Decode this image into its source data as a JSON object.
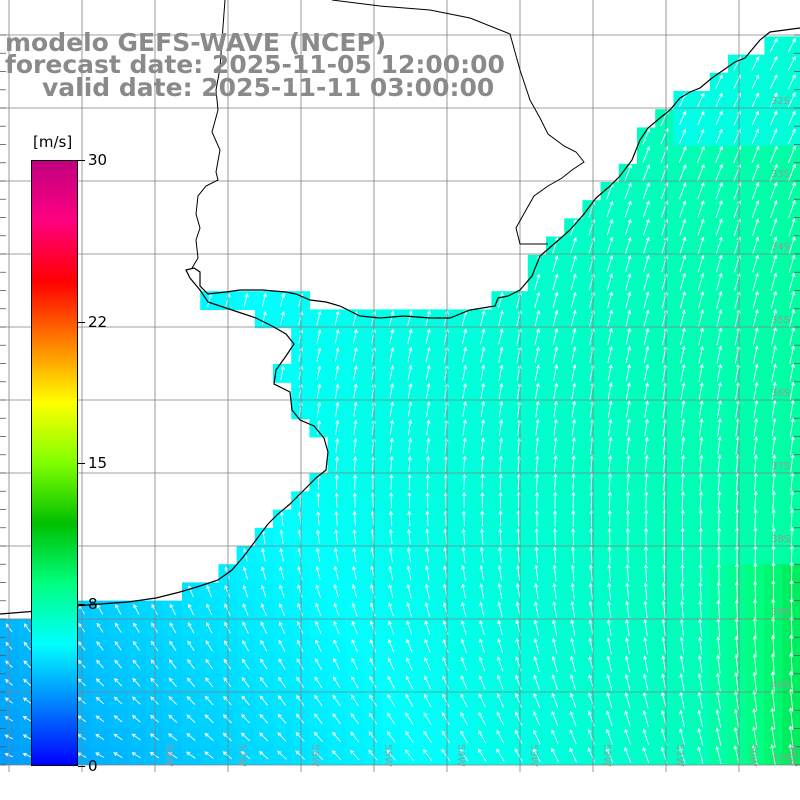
{
  "title": {
    "model": "modelo GEFS-WAVE (NCEP)",
    "forecast": "forecast date: 2025-11-05 12:00:00",
    "valid": "valid date: 2025-11-11 03:00:00"
  },
  "colorbar": {
    "unit": "[m/s]",
    "min": 0,
    "max": 30,
    "tick_labels": [
      "30",
      "22",
      "15",
      "8",
      "0"
    ],
    "tick_values": [
      30,
      22,
      15,
      8,
      0
    ],
    "colors": [
      "#0000ff",
      "#0080ff",
      "#00ffff",
      "#00ff80",
      "#00c000",
      "#80ff00",
      "#ffff00",
      "#ff8000",
      "#ff0000",
      "#ff0080",
      "#c00080"
    ]
  },
  "map": {
    "land_color": "#ffffff",
    "grid_color": "#808080",
    "coast_color": "#000000",
    "arrow_color": "#ffffff",
    "latitude_labels": [
      "32S",
      "33S",
      "34S",
      "35S",
      "36S",
      "37S",
      "38S",
      "39S",
      "40S",
      "41S"
    ],
    "longitude_labels": [
      "58W",
      "57W",
      "56W",
      "55W",
      "54W",
      "53W",
      "52W",
      "51W",
      "50W",
      "49W"
    ]
  }
}
